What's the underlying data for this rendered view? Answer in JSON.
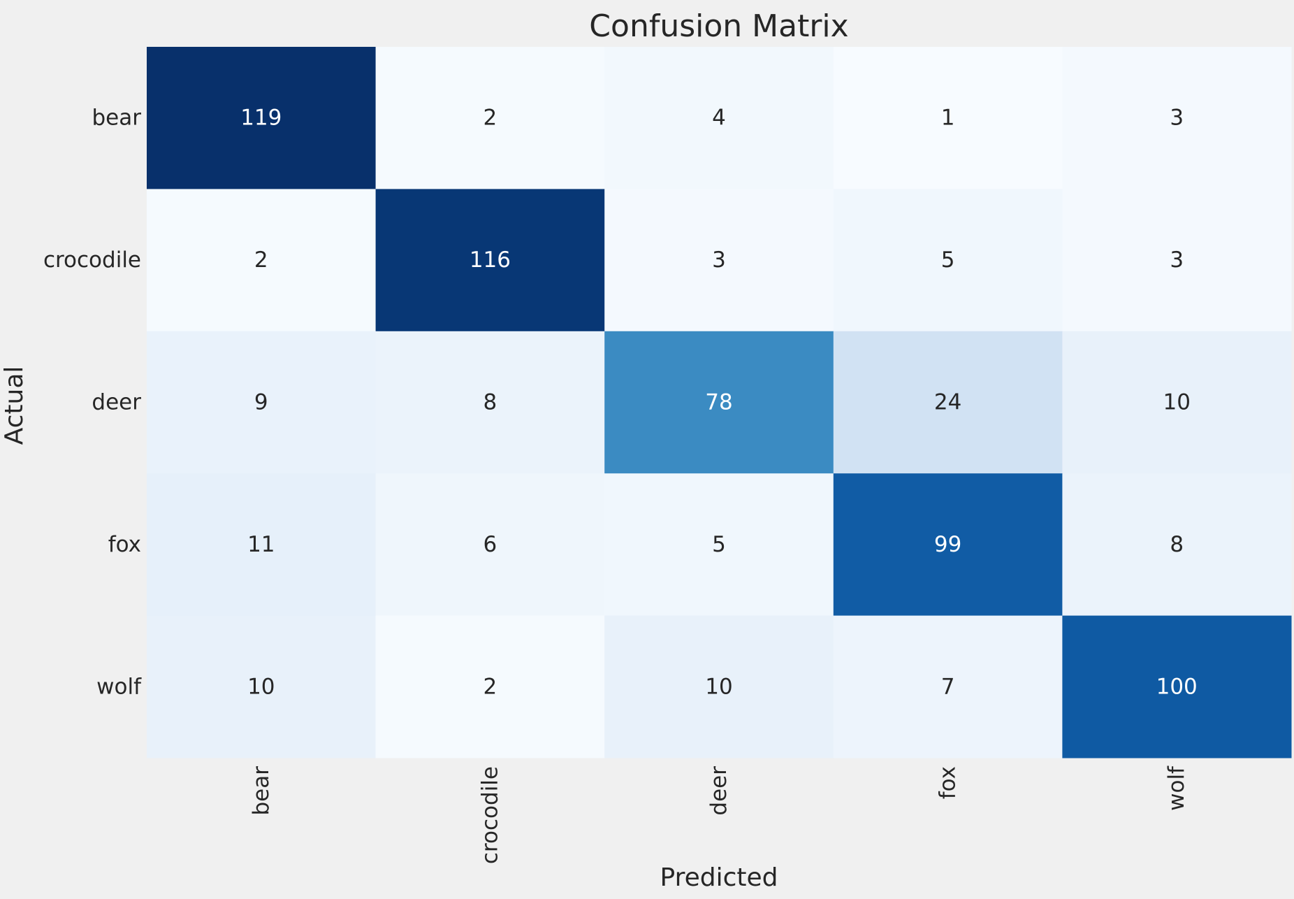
{
  "chart_data": {
    "type": "heatmap",
    "title": "Confusion Matrix",
    "xlabel": "Predicted",
    "ylabel": "Actual",
    "x_categories": [
      "bear",
      "crocodile",
      "deer",
      "fox",
      "wolf"
    ],
    "y_categories": [
      "bear",
      "crocodile",
      "deer",
      "fox",
      "wolf"
    ],
    "values": [
      [
        119,
        2,
        4,
        1,
        3
      ],
      [
        2,
        116,
        3,
        5,
        3
      ],
      [
        9,
        8,
        78,
        24,
        10
      ],
      [
        11,
        6,
        5,
        99,
        8
      ],
      [
        10,
        2,
        10,
        7,
        100
      ]
    ],
    "colormap": "Blues",
    "colorbar": false,
    "value_range": [
      1,
      119
    ]
  },
  "colors": {
    "background": "#f0f0f0",
    "text_dark": "#262626",
    "text_light": "#ffffff"
  }
}
